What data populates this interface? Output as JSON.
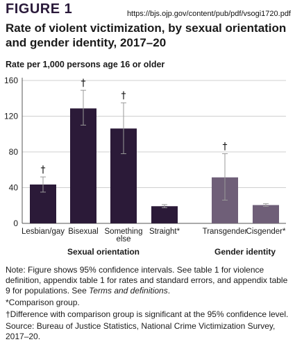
{
  "figure_label": "FIGURE 1",
  "source_url": "https://bjs.ojp.gov/content/pub/pdf/vsogi1720.pdf",
  "chart_data": {
    "type": "bar",
    "title": "Rate of violent victimization, by sexual orientation and gender identity, 2017–20",
    "ylabel": "Rate per 1,000 persons age 16 or older",
    "ylim": [
      0,
      160
    ],
    "yticks": [
      "0",
      "40",
      "80",
      "120",
      "160"
    ],
    "yticks_values": [
      0,
      40,
      80,
      120,
      160
    ],
    "categories": [
      "Lesbian/gay",
      "Bisexual",
      "Something else",
      "Straight*",
      "Transgender",
      "Cisgender*"
    ],
    "groups": [
      {
        "label": "Sexual orientation",
        "categories": [
          "Lesbian/gay",
          "Bisexual",
          "Something else",
          "Straight*"
        ]
      },
      {
        "label": "Gender identity",
        "categories": [
          "Transgender",
          "Cisgender*"
        ]
      }
    ],
    "values": [
      43.5,
      128.7,
      106.2,
      19.2,
      51.5,
      20.5
    ],
    "ci_low": [
      35,
      110,
      78,
      17.5,
      26,
      19
    ],
    "ci_high": [
      52,
      149,
      135,
      21,
      78,
      22
    ],
    "significance_marks": [
      "†",
      "†",
      "†",
      "",
      "†",
      ""
    ],
    "colors": {
      "sexual_orientation": "#2b1a38",
      "gender_identity": "#6f5f78"
    }
  },
  "notes": {
    "note": "Note: Figure shows 95% confidence intervals. See table 1 for violence definition, appendix table 1 for rates and standard errors, and appendix table 9 for populations. See ",
    "note_italic": "Terms and definitions",
    "note_end": ".",
    "comparison": "*Comparison group.",
    "difference": "†Difference with comparison group is significant at the 95% confidence level.",
    "source": "Source: Bureau of Justice Statistics, National Crime Victimization Survey, 2017–20."
  }
}
